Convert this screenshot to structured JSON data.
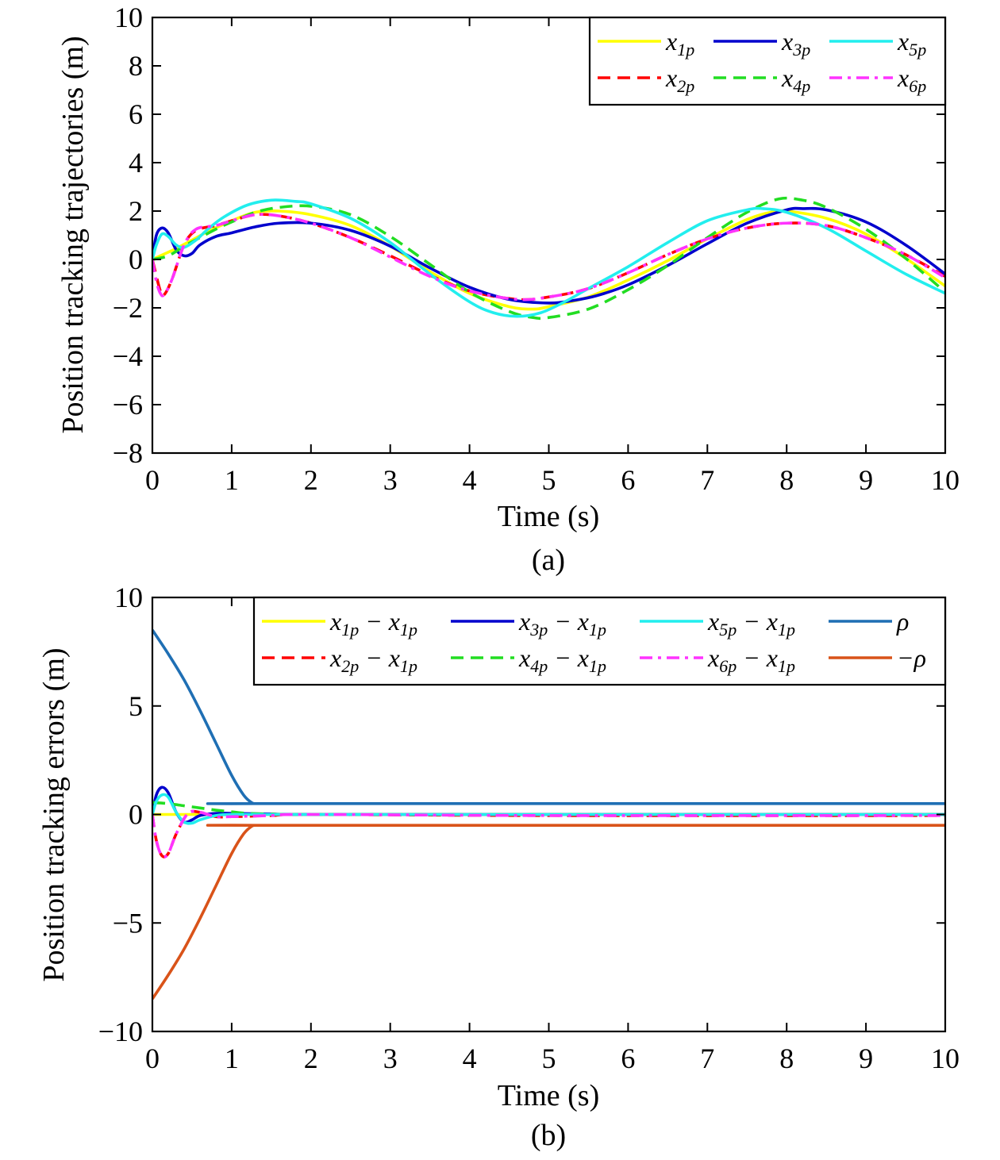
{
  "chart_data": [
    {
      "type": "line",
      "caption": "(a)",
      "xlabel": "Time (s)",
      "ylabel": "Position tracking trajectories (m)",
      "xlim": [
        0,
        10
      ],
      "ylim": [
        -8,
        10
      ],
      "xticks": [
        0,
        1,
        2,
        3,
        4,
        5,
        6,
        7,
        8,
        9,
        10
      ],
      "yticks": [
        10,
        8,
        6,
        4,
        2,
        0,
        -2,
        -4,
        -6,
        -8
      ],
      "ytick_labels": [
        "10",
        "8",
        "6",
        "4",
        "2",
        "0",
        "−2",
        "−4",
        "−6",
        "−8"
      ],
      "legend_position": "top-right",
      "legend_columns": 3,
      "series": [
        {
          "name": "x1p",
          "label_base": "x",
          "label_sub": "1p",
          "color": "#ffff00",
          "dash": "solid",
          "x": [
            0,
            0.1,
            0.2,
            0.3,
            0.5,
            0.7,
            1.0,
            1.3,
            1.6,
            2.0,
            2.5,
            3.0,
            3.5,
            4.0,
            4.5,
            4.8,
            5.0,
            5.5,
            6.0,
            6.5,
            7.0,
            7.5,
            7.8,
            8.0,
            8.5,
            9.0,
            9.5,
            10.0
          ],
          "y": [
            0,
            0.15,
            0.3,
            0.45,
            0.8,
            1.15,
            1.6,
            1.95,
            2.0,
            1.85,
            1.4,
            0.55,
            -0.5,
            -1.4,
            -1.95,
            -2.05,
            -1.95,
            -1.55,
            -0.85,
            -0.05,
            0.85,
            1.65,
            1.95,
            2.0,
            1.7,
            1.05,
            0.05,
            -1.1
          ]
        },
        {
          "name": "x2p",
          "label_base": "x",
          "label_sub": "2p",
          "color": "#ff0000",
          "dash": "dashed",
          "x": [
            0,
            0.1,
            0.15,
            0.25,
            0.4,
            0.55,
            0.8,
            1.0,
            1.3,
            1.6,
            2.0,
            2.5,
            3.0,
            3.5,
            4.0,
            4.6,
            5.0,
            5.5,
            6.0,
            6.5,
            7.0,
            7.5,
            8.0,
            8.5,
            9.0,
            9.5,
            10.0
          ],
          "y": [
            0,
            -1.3,
            -1.45,
            -0.8,
            0.6,
            1.2,
            1.4,
            1.6,
            1.85,
            1.8,
            1.5,
            0.9,
            0.15,
            -0.65,
            -1.3,
            -1.65,
            -1.55,
            -1.2,
            -0.55,
            0.2,
            0.85,
            1.3,
            1.5,
            1.4,
            0.9,
            0.2,
            -0.7
          ]
        },
        {
          "name": "x3p",
          "label_base": "x",
          "label_sub": "3p",
          "color": "#0000cd",
          "dash": "solid",
          "x": [
            0,
            0.05,
            0.12,
            0.2,
            0.3,
            0.4,
            0.5,
            0.6,
            0.8,
            1.0,
            1.3,
            1.6,
            2.0,
            2.5,
            3.0,
            3.5,
            4.0,
            4.5,
            5.0,
            5.3,
            5.6,
            6.0,
            6.5,
            7.0,
            7.5,
            8.0,
            8.2,
            8.5,
            9.0,
            9.5,
            10.0
          ],
          "y": [
            0,
            1.0,
            1.3,
            1.1,
            0.4,
            0.15,
            0.25,
            0.6,
            0.95,
            1.1,
            1.35,
            1.5,
            1.5,
            1.2,
            0.55,
            -0.35,
            -1.15,
            -1.65,
            -1.8,
            -1.7,
            -1.5,
            -1.05,
            -0.25,
            0.65,
            1.5,
            2.05,
            2.1,
            2.05,
            1.55,
            0.6,
            -0.6
          ]
        },
        {
          "name": "x4p",
          "label_base": "x",
          "label_sub": "4p",
          "color": "#22dd22",
          "dash": "dashed",
          "x": [
            0,
            0.2,
            0.4,
            0.6,
            0.8,
            1.0,
            1.3,
            1.6,
            2.0,
            2.5,
            3.0,
            3.5,
            4.0,
            4.5,
            4.8,
            5.0,
            5.5,
            6.0,
            6.5,
            7.0,
            7.5,
            7.9,
            8.2,
            8.5,
            9.0,
            9.5,
            10.0
          ],
          "y": [
            0,
            0.15,
            0.55,
            0.9,
            1.25,
            1.55,
            1.95,
            2.15,
            2.2,
            1.85,
            0.95,
            -0.2,
            -1.35,
            -2.15,
            -2.4,
            -2.4,
            -2.05,
            -1.25,
            -0.25,
            0.9,
            1.95,
            2.5,
            2.45,
            2.15,
            1.25,
            0.05,
            -1.35
          ]
        },
        {
          "name": "x5p",
          "label_base": "x",
          "label_sub": "5p",
          "color": "#22eeee",
          "dash": "solid",
          "x": [
            0,
            0.05,
            0.12,
            0.2,
            0.3,
            0.4,
            0.55,
            0.7,
            0.9,
            1.2,
            1.5,
            1.8,
            2.0,
            2.5,
            3.0,
            3.5,
            4.0,
            4.3,
            4.6,
            4.9,
            5.2,
            5.5,
            6.0,
            6.5,
            7.0,
            7.5,
            7.7,
            8.0,
            8.5,
            9.0,
            9.5,
            10.0
          ],
          "y": [
            0,
            0.6,
            1.05,
            0.95,
            0.6,
            0.5,
            0.8,
            1.25,
            1.75,
            2.25,
            2.45,
            2.4,
            2.3,
            1.7,
            0.7,
            -0.6,
            -1.75,
            -2.2,
            -2.35,
            -2.2,
            -1.75,
            -1.2,
            -0.3,
            0.7,
            1.6,
            2.05,
            2.1,
            1.95,
            1.3,
            0.35,
            -0.6,
            -1.4
          ]
        },
        {
          "name": "x6p",
          "label_base": "x",
          "label_sub": "6p",
          "color": "#ff33ff",
          "dash": "dashdot",
          "x": [
            0,
            0.05,
            0.1,
            0.15,
            0.25,
            0.4,
            0.55,
            0.8,
            1.0,
            1.3,
            1.6,
            2.0,
            2.5,
            3.0,
            3.5,
            4.0,
            4.6,
            5.0,
            5.5,
            6.0,
            6.5,
            7.0,
            7.5,
            8.0,
            8.5,
            9.0,
            9.5,
            10.0
          ],
          "y": [
            0,
            -0.9,
            -1.4,
            -1.45,
            -0.8,
            0.6,
            1.25,
            1.4,
            1.6,
            1.85,
            1.8,
            1.5,
            0.9,
            0.1,
            -0.7,
            -1.3,
            -1.65,
            -1.55,
            -1.2,
            -0.55,
            0.2,
            0.85,
            1.3,
            1.5,
            1.4,
            0.9,
            0.2,
            -0.75
          ]
        }
      ]
    },
    {
      "type": "line",
      "caption": "(b)",
      "xlabel": "Time (s)",
      "ylabel": "Position tracking errors (m)",
      "xlim": [
        0,
        10
      ],
      "ylim": [
        -10,
        10
      ],
      "xticks": [
        0,
        1,
        2,
        3,
        4,
        5,
        6,
        7,
        8,
        9,
        10
      ],
      "yticks": [
        10,
        5,
        0,
        -5,
        -10
      ],
      "ytick_labels": [
        "10",
        "5",
        "0",
        "−5",
        "−10"
      ],
      "legend_position": "top-right",
      "legend_columns": 4,
      "series": [
        {
          "name": "x1p − x1p",
          "label_base": "x",
          "label_sub": "1p",
          "label_tail": " − x",
          "label_sub2": "1p",
          "color": "#ffff00",
          "dash": "solid",
          "x": [
            0,
            10
          ],
          "y": [
            0,
            0
          ]
        },
        {
          "name": "x2p − x1p",
          "label_base": "x",
          "label_sub": "2p",
          "label_tail": " − x",
          "label_sub2": "1p",
          "color": "#ff0000",
          "dash": "dashed",
          "x": [
            0,
            0.05,
            0.12,
            0.2,
            0.3,
            0.45,
            0.6,
            0.8,
            1.0,
            1.5,
            2.0,
            5.0,
            10.0
          ],
          "y": [
            0,
            -1.2,
            -1.9,
            -1.8,
            -0.9,
            0.05,
            0.1,
            -0.1,
            -0.1,
            -0.05,
            0,
            -0.05,
            -0.05
          ]
        },
        {
          "name": "x3p − x1p",
          "label_base": "x",
          "label_sub": "3p",
          "label_tail": " − x",
          "label_sub2": "1p",
          "color": "#0000cd",
          "dash": "solid",
          "x": [
            0,
            0.05,
            0.12,
            0.2,
            0.3,
            0.4,
            0.5,
            0.6,
            0.8,
            1.0,
            1.5,
            2.0,
            5.0,
            10.0
          ],
          "y": [
            0,
            0.9,
            1.25,
            1.0,
            0.1,
            -0.35,
            -0.25,
            -0.05,
            0.05,
            0.05,
            0.02,
            0,
            0,
            0
          ]
        },
        {
          "name": "x4p − x1p",
          "label_base": "x",
          "label_sub": "4p",
          "label_tail": " − x",
          "label_sub2": "1p",
          "color": "#22dd22",
          "dash": "dashed",
          "x": [
            0,
            0.2,
            0.4,
            0.6,
            0.8,
            1.0,
            1.2,
            1.5,
            2.0,
            5.0,
            10.0
          ],
          "y": [
            0.55,
            0.5,
            0.4,
            0.3,
            0.2,
            0.12,
            0.05,
            0.02,
            0,
            0,
            0
          ]
        },
        {
          "name": "x5p − x1p",
          "label_base": "x",
          "label_sub": "5p",
          "label_tail": " − x",
          "label_sub2": "1p",
          "color": "#22eeee",
          "dash": "solid",
          "x": [
            0,
            0.05,
            0.12,
            0.2,
            0.3,
            0.4,
            0.5,
            0.6,
            0.8,
            1.0,
            1.5,
            2.0,
            5.0,
            10.0
          ],
          "y": [
            0,
            0.6,
            0.9,
            0.8,
            0.1,
            -0.35,
            -0.4,
            -0.25,
            -0.05,
            0,
            0,
            0,
            0,
            0
          ]
        },
        {
          "name": "x6p − x1p",
          "label_base": "x",
          "label_sub": "6p",
          "label_tail": " − x",
          "label_sub2": "1p",
          "color": "#ff33ff",
          "dash": "dashdot",
          "x": [
            0,
            0.05,
            0.12,
            0.2,
            0.3,
            0.45,
            0.6,
            0.8,
            1.0,
            1.5,
            2.0,
            5.0,
            10.0
          ],
          "y": [
            0,
            -1.2,
            -1.9,
            -1.8,
            -0.9,
            0.05,
            0.1,
            -0.1,
            -0.1,
            -0.05,
            0,
            -0.05,
            -0.05
          ]
        },
        {
          "name": "ρ",
          "label_base": "ρ",
          "color": "#1f6fb4",
          "dash": "solid",
          "x": [
            0,
            0.2,
            0.4,
            0.6,
            0.8,
            1.0,
            1.15,
            1.25,
            1.3,
            1.35,
            10.0
          ],
          "y": [
            8.5,
            7.4,
            6.2,
            4.8,
            3.3,
            1.8,
            0.9,
            0.55,
            0.5,
            0.5,
            0.5
          ]
        },
        {
          "name": "−ρ",
          "label_base": "−ρ",
          "color": "#d95319",
          "dash": "solid",
          "x": [
            0,
            0.2,
            0.4,
            0.6,
            0.8,
            1.0,
            1.15,
            1.25,
            1.3,
            1.35,
            10.0
          ],
          "y": [
            -8.5,
            -7.4,
            -6.2,
            -4.8,
            -3.3,
            -1.8,
            -0.9,
            -0.55,
            -0.5,
            -0.5,
            -0.5
          ]
        }
      ]
    }
  ]
}
